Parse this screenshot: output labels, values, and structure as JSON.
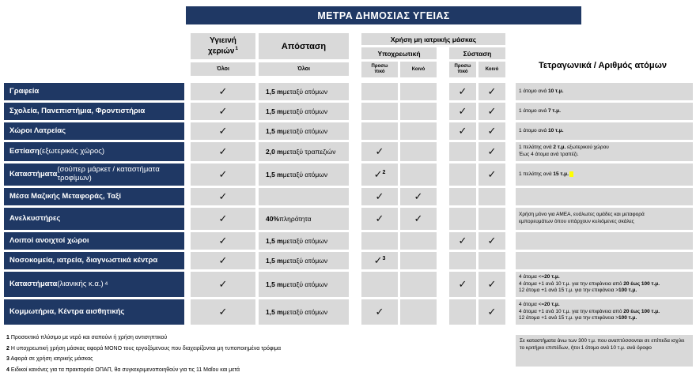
{
  "title": "ΜΕΤΡΑ ΔΗΜΟΣΙΑΣ ΥΓΕΙΑΣ",
  "colors": {
    "navy": "#1f3864",
    "cell_gray": "#d9d9d9",
    "highlight": "#ffff00"
  },
  "header": {
    "hand_hygiene": "Υγιεινή χεριών",
    "hand_hygiene_sup": "1",
    "all_label_hygiene": "Όλοι",
    "distance": "Απόσταση",
    "all_label_distance": "Όλοι",
    "mask_title": "Χρήση μη ιατρικής μάσκας",
    "mandatory": "Υποχρεωτική",
    "recommended": "Σύσταση",
    "staff": "Προσω\nπικό",
    "public": "Κοινό",
    "sqm": "Τετραγωνικά / Αριθμός ατόμων"
  },
  "rows": [
    {
      "label": "**Γραφεία**",
      "label_sup": "",
      "hygiene": "✓",
      "distance": "**1,5 m** μεταξύ ατόμων",
      "mask": {
        "mandatory_staff": "",
        "mandatory_staff_sup": "",
        "mandatory_public": "",
        "recommended_staff": "✓",
        "recommended_public": "✓"
      },
      "note": [
        "1 άτομο ανά **10 τ.μ.**"
      ],
      "note_highlight": false
    },
    {
      "label": "**Σχολεία, Πανεπιστήμια, Φροντιστήρια**",
      "label_sup": "",
      "hygiene": "✓",
      "distance": "**1,5 m** μεταξύ ατόμων",
      "mask": {
        "mandatory_staff": "",
        "mandatory_staff_sup": "",
        "mandatory_public": "",
        "recommended_staff": "✓",
        "recommended_public": "✓"
      },
      "note": [
        "1 άτομο ανά **7 τ.μ.**"
      ],
      "note_highlight": false
    },
    {
      "label": "**Χώροι Λατρείας**",
      "label_sup": "",
      "hygiene": "✓",
      "distance": "**1,5 m** μεταξύ ατόμων",
      "mask": {
        "mandatory_staff": "",
        "mandatory_staff_sup": "",
        "mandatory_public": "",
        "recommended_staff": "✓",
        "recommended_public": "✓"
      },
      "note": [
        "1 άτομο ανά **10 τ.μ.**"
      ],
      "note_highlight": false
    },
    {
      "label": "**Εστίαση** (εξωτερικός χώρος)",
      "label_sup": "",
      "hygiene": "✓",
      "distance": "**2,0 m** μεταξύ τραπεζιών",
      "mask": {
        "mandatory_staff": "✓",
        "mandatory_staff_sup": "",
        "mandatory_public": "",
        "recommended_staff": "",
        "recommended_public": "✓"
      },
      "note": [
        "1 πελάτης ανά **2 τ.μ.** εξωτερικού χώρου",
        "Έως 4 άτομα ανά τραπέζι."
      ],
      "note_highlight": false
    },
    {
      "label": "**Καταστήματα** (σούπερ μάρκετ / καταστήματα τροφίμων)",
      "label_sup": "",
      "hygiene": "✓",
      "distance": "**1,5 m** μεταξύ ατόμων",
      "mask": {
        "mandatory_staff": "✓",
        "mandatory_staff_sup": "2",
        "mandatory_public": "",
        "recommended_staff": "",
        "recommended_public": "✓"
      },
      "note": [
        "1 πελάτης ανά **15 τ.μ.**"
      ],
      "note_highlight": true
    },
    {
      "label": "**Μέσα Μαζικής Μεταφοράς, Ταξί**",
      "label_sup": "",
      "hygiene": "✓",
      "distance": "",
      "mask": {
        "mandatory_staff": "✓",
        "mandatory_staff_sup": "",
        "mandatory_public": "✓",
        "recommended_staff": "",
        "recommended_public": ""
      },
      "note": [],
      "note_highlight": false
    },
    {
      "label": "**Ανελκυστήρες**",
      "label_sup": "",
      "hygiene": "✓",
      "distance": "**40%** πληρότητα",
      "mask": {
        "mandatory_staff": "✓",
        "mandatory_staff_sup": "",
        "mandatory_public": "✓",
        "recommended_staff": "",
        "recommended_public": ""
      },
      "note": [
        "Χρήση μόνο για ΑΜΕΑ, ευάλωτες ομάδες και μεταφορά",
        "εμπορευμάτων όπου υπάρχουν κυλιόμενες σκάλες"
      ],
      "note_highlight": false
    },
    {
      "label": "**Λοιποί ανοιχτοί χώροι**",
      "label_sup": "",
      "hygiene": "✓",
      "distance": "**1,5 m** μεταξύ ατόμων",
      "mask": {
        "mandatory_staff": "",
        "mandatory_staff_sup": "",
        "mandatory_public": "",
        "recommended_staff": "✓",
        "recommended_public": "✓"
      },
      "note": [],
      "note_highlight": false
    },
    {
      "label": "**Νοσοκομεία, ιατρεία, διαγνωστικά κέντρα**",
      "label_sup": "",
      "hygiene": "✓",
      "distance": "**1,5 m** μεταξύ ατόμων",
      "mask": {
        "mandatory_staff": "✓",
        "mandatory_staff_sup": "3",
        "mandatory_public": "",
        "recommended_staff": "",
        "recommended_public": ""
      },
      "note": [],
      "note_highlight": false
    },
    {
      "label": "**Καταστήματα** (λιανικής κ.α.)",
      "label_sup": "4",
      "hygiene": "✓",
      "distance": "**1,5 m** μεταξύ ατόμων",
      "mask": {
        "mandatory_staff": "",
        "mandatory_staff_sup": "",
        "mandatory_public": "",
        "recommended_staff": "✓",
        "recommended_public": "✓"
      },
      "note": [
        "4 άτομα <=**20 τ.μ.**",
        "4 άτομα +1 ανά 10 τ.μ. για την επιφάνεια από **20 έως 100 τ.μ.**",
        "12 άτομα +1 ανά 15 τ.μ. για την επιφάνεια >**100 τ.μ.**"
      ],
      "note_highlight": false
    },
    {
      "label": "**Κομμωτήρια, Κέντρα αισθητικής**",
      "label_sup": "",
      "hygiene": "✓",
      "distance": "**1,5 m** μεταξύ ατόμων",
      "mask": {
        "mandatory_staff": "✓",
        "mandatory_staff_sup": "",
        "mandatory_public": "",
        "recommended_staff": "",
        "recommended_public": "✓"
      },
      "note": [
        "4 άτομα <=**20 τ.μ.**",
        "4 άτομα +1 ανά 10 τ.μ. για την επιφάνεια από **20 έως 100 τ.μ.**",
        "12 άτομα +1 ανά 15 τ.μ. για την επιφάνεια >**100 τ.μ.**"
      ],
      "note_highlight": false
    }
  ],
  "footnotes": [
    "**1** Προσεκτικό πλύσιμο με νερό και σαπούνι ή χρήση αντισηπτικού",
    "**2** Η υποχρεωτική χρήση μάσκας αφορά ΜΟΝΟ τους εργαζόμενους που διαχειρίζονται μη τυποποιημένα τρόφιμα",
    "**3** Αφορά σε χρήση ιατρικής μάσκας",
    "**4** Ειδικοί κανόνες για τα πρακτορεία ΟΠΑΠ, θα συγκεκριμενοποιηθούν για τις 11 Μαΐου και μετά"
  ],
  "side_note": "Σε καταστήματα άνω των 300 τ.μ. που αναπτύσσονται σε επίπεδα ισχύει το κριτήριο επιπέδων, ήτοι 1 άτομο ανά 10 τ.μ. ανά όροφο"
}
